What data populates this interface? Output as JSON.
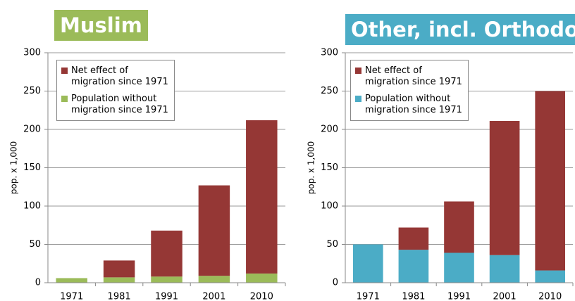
{
  "chart_data": [
    {
      "type": "bar",
      "stacked": true,
      "title": "Muslim",
      "title_color": "#9bbb59",
      "ylabel": "pop. x 1,000",
      "categories": [
        "1971",
        "1981",
        "1991",
        "2001",
        "2010"
      ],
      "series": [
        {
          "name": "Population without migration since 1971",
          "color": "#9bbb59",
          "values": [
            6,
            7,
            8,
            9,
            12
          ]
        },
        {
          "name": "Net effect of migration since 1971",
          "color": "#953735",
          "values": [
            0,
            22,
            60,
            118,
            200
          ]
        }
      ],
      "ylim": [
        0,
        300
      ],
      "yticks": [
        0,
        50,
        100,
        150,
        200,
        250,
        300
      ],
      "grid": true,
      "legend": "upper left"
    },
    {
      "type": "bar",
      "stacked": true,
      "title": "Other, incl. Orthodox",
      "title_color": "#4bacc6",
      "ylabel": "pop. x 1,000",
      "categories": [
        "1971",
        "1981",
        "1991",
        "2001",
        "2010"
      ],
      "series": [
        {
          "name": "Population without migration since 1971",
          "color": "#4bacc6",
          "values": [
            50,
            43,
            39,
            36,
            16
          ]
        },
        {
          "name": "Net effect of migration since 1971",
          "color": "#953735",
          "values": [
            0,
            29,
            67,
            175,
            234
          ]
        }
      ],
      "ylim": [
        0,
        300
      ],
      "yticks": [
        0,
        50,
        100,
        150,
        200,
        250,
        300
      ],
      "grid": true,
      "legend": "upper left"
    }
  ]
}
